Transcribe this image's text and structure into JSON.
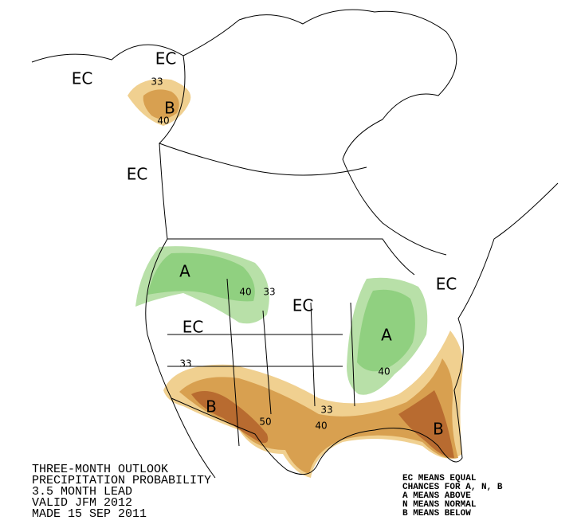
{
  "title_lines": [
    "THREE-MONTH OUTLOOK",
    "PRECIPITATION PROBABILITY",
    "3.5 MONTH LEAD",
    "VALID JFM 2012",
    "MADE 15 SEP 2011"
  ],
  "legend_lines": [
    "EC MEANS EQUAL",
    "CHANCES FOR A, N, B",
    "A MEANS ABOVE",
    "N MEANS NORMAL",
    "B MEANS BELOW"
  ],
  "labels": [
    "EC",
    "EC",
    "33",
    "B",
    "40",
    "EC",
    "A",
    "40",
    "33",
    "EC",
    "EC",
    "EC",
    "A",
    "33",
    "40",
    "B",
    "33",
    "50",
    "40",
    "B"
  ]
}
